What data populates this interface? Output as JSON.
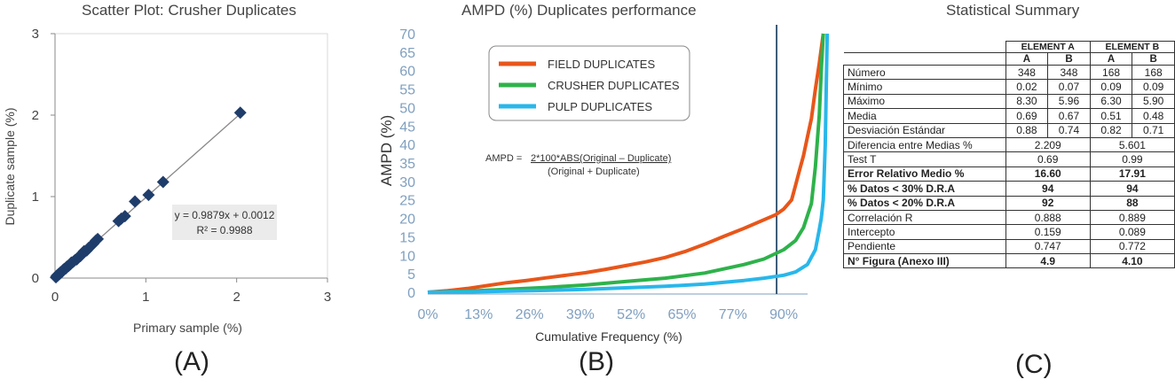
{
  "panels": {
    "a_label": "(A)",
    "b_label": "(B)",
    "c_label": "(C)"
  },
  "chart_data": [
    {
      "type": "scatter",
      "title": "Scatter Plot: Crusher Duplicates",
      "xlabel": "Primary sample (%)",
      "ylabel": "Duplicate sample (%)",
      "xlim": [
        0,
        3
      ],
      "ylim": [
        0,
        3
      ],
      "xticks": [
        "0",
        "1",
        "2",
        "3"
      ],
      "yticks": [
        "0",
        "1",
        "2",
        "3"
      ],
      "marker_color": "#1f3d6b",
      "line_color": "#888888",
      "trendline": {
        "slope": 0.9879,
        "intercept": 0.0012
      },
      "annotation": [
        "y = 0.9879x + 0.0012",
        "R² = 0.9988"
      ],
      "points": [
        [
          0.01,
          0.01
        ],
        [
          0.02,
          0.03
        ],
        [
          0.03,
          0.03
        ],
        [
          0.04,
          0.05
        ],
        [
          0.05,
          0.05
        ],
        [
          0.06,
          0.07
        ],
        [
          0.08,
          0.08
        ],
        [
          0.09,
          0.1
        ],
        [
          0.1,
          0.11
        ],
        [
          0.12,
          0.12
        ],
        [
          0.13,
          0.14
        ],
        [
          0.15,
          0.15
        ],
        [
          0.17,
          0.17
        ],
        [
          0.18,
          0.19
        ],
        [
          0.2,
          0.2
        ],
        [
          0.22,
          0.22
        ],
        [
          0.24,
          0.23
        ],
        [
          0.26,
          0.26
        ],
        [
          0.28,
          0.27
        ],
        [
          0.3,
          0.3
        ],
        [
          0.32,
          0.33
        ],
        [
          0.35,
          0.34
        ],
        [
          0.37,
          0.37
        ],
        [
          0.4,
          0.4
        ],
        [
          0.42,
          0.42
        ],
        [
          0.45,
          0.46
        ],
        [
          0.47,
          0.48
        ],
        [
          0.7,
          0.7
        ],
        [
          0.73,
          0.73
        ],
        [
          0.77,
          0.76
        ],
        [
          0.88,
          0.94
        ],
        [
          1.03,
          1.02
        ],
        [
          1.19,
          1.18
        ],
        [
          2.04,
          2.03
        ]
      ]
    },
    {
      "type": "line",
      "title": "AMPD (%) Duplicates performance",
      "xlabel": "Cumulative Frequency (%)",
      "ylabel": "AMPD (%)",
      "ylim": [
        0,
        70
      ],
      "yticks": [
        "0",
        "5",
        "10",
        "15",
        "20",
        "25",
        "30",
        "35",
        "40",
        "45",
        "50",
        "55",
        "60",
        "65",
        "70"
      ],
      "xticks": [
        "0%",
        "13%",
        "26%",
        "39%",
        "52%",
        "65%",
        "77%",
        "90%"
      ],
      "x_range": [
        0,
        100
      ],
      "reference_line_x": 90,
      "formula": {
        "lhs": "AMPD = ",
        "numerator": "2*100*ABS(Original – Duplicate)",
        "denominator": "(Original + Duplicate)"
      },
      "series": [
        {
          "name": "FIELD DUPLICATES",
          "color": "#e8561a",
          "points": [
            [
              0,
              0
            ],
            [
              5,
              0.4
            ],
            [
              10,
              1
            ],
            [
              15,
              1.8
            ],
            [
              20,
              2.6
            ],
            [
              25,
              3.2
            ],
            [
              30,
              3.9
            ],
            [
              35,
              4.6
            ],
            [
              40,
              5.3
            ],
            [
              45,
              6.2
            ],
            [
              50,
              7.2
            ],
            [
              55,
              8.2
            ],
            [
              60,
              9.4
            ],
            [
              65,
              11
            ],
            [
              70,
              13
            ],
            [
              75,
              15.2
            ],
            [
              80,
              17.3
            ],
            [
              85,
              19.6
            ],
            [
              88,
              21
            ],
            [
              90,
              22.5
            ],
            [
              92,
              25
            ],
            [
              93,
              29
            ],
            [
              94,
              33
            ],
            [
              95,
              37
            ],
            [
              96,
              42
            ],
            [
              97,
              47
            ],
            [
              98,
              55
            ],
            [
              99,
              62
            ],
            [
              100,
              70
            ]
          ]
        },
        {
          "name": "CRUSHER DUPLICATES",
          "color": "#2eb24b",
          "points": [
            [
              0,
              0
            ],
            [
              10,
              0.3
            ],
            [
              20,
              0.8
            ],
            [
              30,
              1.3
            ],
            [
              40,
              2
            ],
            [
              50,
              2.9
            ],
            [
              60,
              3.8
            ],
            [
              70,
              5.2
            ],
            [
              80,
              7.5
            ],
            [
              85,
              9
            ],
            [
              90,
              11.5
            ],
            [
              93,
              14
            ],
            [
              95,
              17.5
            ],
            [
              97,
              24
            ],
            [
              98,
              34
            ],
            [
              99,
              48
            ],
            [
              99.5,
              60
            ],
            [
              100,
              70
            ]
          ]
        },
        {
          "name": "PULP DUPLICATES",
          "color": "#29b7ea",
          "points": [
            [
              0,
              0
            ],
            [
              10,
              0.1
            ],
            [
              20,
              0.3
            ],
            [
              30,
              0.5
            ],
            [
              40,
              0.8
            ],
            [
              50,
              1.2
            ],
            [
              60,
              1.6
            ],
            [
              70,
              2.2
            ],
            [
              80,
              3.2
            ],
            [
              85,
              3.8
            ],
            [
              90,
              4.6
            ],
            [
              93,
              5.5
            ],
            [
              96,
              7.5
            ],
            [
              98,
              11.5
            ],
            [
              99,
              17
            ],
            [
              99.5,
              20
            ],
            [
              100,
              25
            ],
            [
              100.5,
              40
            ],
            [
              101,
              70
            ]
          ]
        }
      ]
    },
    {
      "type": "table",
      "title": "Statistical Summary",
      "groups": [
        "ELEMENT A",
        "ELEMENT B"
      ],
      "subheaders": [
        "A",
        "B",
        "A",
        "B"
      ],
      "rows": [
        {
          "label": "Número",
          "cells": [
            "348",
            "348",
            "168",
            "168"
          ]
        },
        {
          "label": "Mínimo",
          "cells": [
            "0.02",
            "0.07",
            "0.09",
            "0.09"
          ]
        },
        {
          "label": "Máximo",
          "cells": [
            "8.30",
            "5.96",
            "6.30",
            "5.90"
          ]
        },
        {
          "label": "Media",
          "cells": [
            "0.69",
            "0.67",
            "0.51",
            "0.48"
          ]
        },
        {
          "label": "Desviación Estándar",
          "cells": [
            "0.88",
            "0.74",
            "0.82",
            "0.71"
          ]
        },
        {
          "label": "Diferencia entre Medias %",
          "cells": [
            "2.209",
            "5.601"
          ]
        },
        {
          "label": "Test T",
          "cells": [
            "0.69",
            "0.99"
          ]
        },
        {
          "label": "Error Relativo Medio %",
          "cells": [
            "16.60",
            "17.91"
          ],
          "bold": true
        },
        {
          "label": "% Datos < 30% D.R.A",
          "cells": [
            "94",
            "94"
          ],
          "bold": true
        },
        {
          "label": "% Datos < 20% D.R.A",
          "cells": [
            "92",
            "88"
          ],
          "bold": true
        },
        {
          "label": "Correlación R",
          "cells": [
            "0.888",
            "0.889"
          ]
        },
        {
          "label": "Intercepto",
          "cells": [
            "0.159",
            "0.089"
          ]
        },
        {
          "label": "Pendiente",
          "cells": [
            "0.747",
            "0.772"
          ]
        },
        {
          "label": "N° Figura (Anexo III)",
          "cells": [
            "4.9",
            "4.10"
          ],
          "bold": true
        }
      ]
    }
  ]
}
